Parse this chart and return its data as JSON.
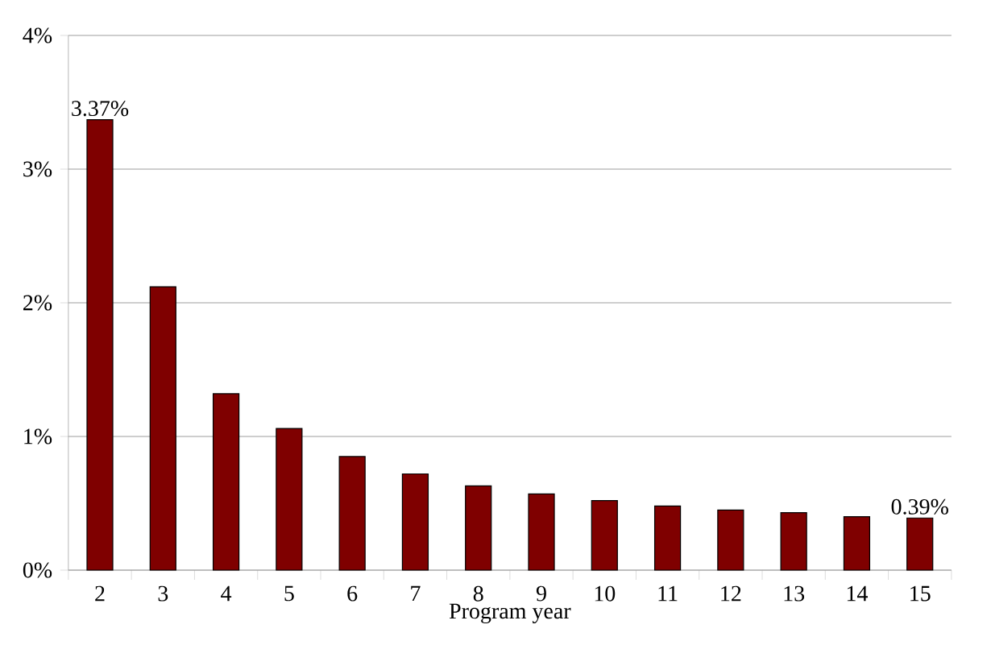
{
  "chart_data": {
    "type": "bar",
    "xlabel": "Program year",
    "categories": [
      "2",
      "3",
      "4",
      "5",
      "6",
      "7",
      "8",
      "9",
      "10",
      "11",
      "12",
      "13",
      "14",
      "15"
    ],
    "values": [
      3.37,
      2.12,
      1.32,
      1.06,
      0.85,
      0.72,
      0.63,
      0.57,
      0.52,
      0.48,
      0.45,
      0.43,
      0.4,
      0.39
    ],
    "value_labels": [
      "3.37%",
      null,
      null,
      null,
      null,
      null,
      null,
      null,
      null,
      null,
      null,
      null,
      null,
      "0.39%"
    ],
    "color": "#7f0000",
    "ylim": [
      0,
      4
    ],
    "yticks": [
      {
        "value": 0,
        "label": "0%"
      },
      {
        "value": 1,
        "label": "1%"
      },
      {
        "value": 2,
        "label": "2%"
      },
      {
        "value": 3,
        "label": "3%"
      },
      {
        "value": 4,
        "label": "4%"
      }
    ],
    "grid": "y"
  }
}
